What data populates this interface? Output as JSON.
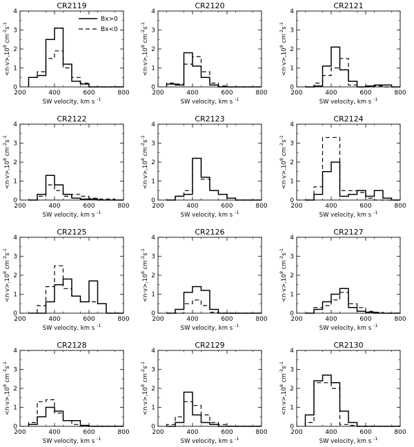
{
  "chart_data": {
    "type": "histogram-grid",
    "xlabel": "SW velocity, km s",
    "xlabel_sup": "-1",
    "ylabel": "<n·v>,10",
    "ylabel_exp": "8",
    "ylabel_unit": "cm",
    "ylabel_unit_exp": "-2",
    "ylabel_tail": "s",
    "ylabel_tail_exp": "-1",
    "xlim": [
      200,
      800
    ],
    "ylim": [
      0,
      4
    ],
    "xticks": [
      200,
      400,
      600,
      800
    ],
    "yticks": [
      0,
      1,
      2,
      3,
      4
    ],
    "bin_edges": [
      250,
      300,
      350,
      400,
      450,
      500,
      550,
      600,
      650,
      700,
      750,
      800
    ],
    "legend": [
      {
        "label": "Bx>0",
        "style": "solid"
      },
      {
        "label": "Bx<0",
        "style": "dashed"
      }
    ],
    "panels": [
      {
        "title": "CR2119",
        "solid": [
          0.5,
          0.6,
          2.5,
          3.1,
          1.2,
          0.3,
          0.15,
          0,
          0,
          0,
          0
        ],
        "dashed": [
          0.5,
          0.8,
          1.5,
          1.9,
          1.0,
          0.5,
          0.2,
          0,
          0,
          0,
          0
        ]
      },
      {
        "title": "CR2120",
        "solid": [
          0.15,
          0.1,
          1.8,
          1.1,
          0.5,
          0.1,
          0,
          0,
          0,
          0,
          0
        ],
        "dashed": [
          0.2,
          0.15,
          1.2,
          1.6,
          0.8,
          0.2,
          0.05,
          0,
          0,
          0,
          0
        ]
      },
      {
        "title": "CR2121",
        "solid": [
          0,
          0.05,
          1.1,
          2.1,
          0.9,
          0.3,
          0,
          0.05,
          0.1,
          0.1,
          0
        ],
        "dashed": [
          0,
          0.2,
          0.6,
          1.0,
          1.5,
          0.1,
          0,
          0,
          0.05,
          0,
          0
        ]
      },
      {
        "title": "CR2122",
        "solid": [
          0,
          0.3,
          1.3,
          0.8,
          0.3,
          0.1,
          0.05,
          0.05,
          0,
          0,
          0
        ],
        "dashed": [
          0,
          0.2,
          0.8,
          0.5,
          0.2,
          0.3,
          0.2,
          0.1,
          0.05,
          0.05,
          0
        ]
      },
      {
        "title": "CR2123",
        "solid": [
          0,
          0.2,
          0.3,
          2.2,
          1.2,
          0.5,
          0.3,
          0.1,
          0,
          0,
          0
        ],
        "dashed": [
          0,
          0.2,
          0.5,
          2.2,
          1.1,
          0.5,
          0.3,
          0.1,
          0,
          0,
          0
        ]
      },
      {
        "title": "CR2124",
        "solid": [
          0,
          0.3,
          1.5,
          2.0,
          0.2,
          0.3,
          0.5,
          0.2,
          0.5,
          0.1,
          0
        ],
        "dashed": [
          0,
          0.7,
          3.3,
          3.3,
          0.5,
          0.5,
          0.4,
          0.1,
          0,
          0,
          0
        ]
      },
      {
        "title": "CR2125",
        "solid": [
          0,
          0,
          0.6,
          1.5,
          1.8,
          0.9,
          0.6,
          1.7,
          0.5,
          0,
          0
        ],
        "dashed": [
          0,
          0.4,
          1.4,
          2.5,
          1.3,
          0.9,
          0.6,
          0.6,
          0.5,
          0,
          0
        ],
        "dashed_start": 300
      },
      {
        "title": "CR2126",
        "solid": [
          0,
          0.2,
          1.1,
          1.4,
          1.2,
          0.2,
          0,
          0,
          0,
          0,
          0
        ],
        "dashed": [
          0,
          0,
          0.5,
          0.7,
          0.4,
          0.05,
          0,
          0,
          0,
          0,
          0
        ]
      },
      {
        "title": "CR2127",
        "solid": [
          0,
          0.2,
          0.6,
          1.0,
          1.3,
          0.3,
          0.1,
          0.05,
          0,
          0,
          0
        ],
        "dashed": [
          0,
          0.3,
          0.4,
          0.7,
          1.1,
          0.5,
          0.3,
          0.1,
          0.05,
          0,
          0
        ]
      },
      {
        "title": "CR2128",
        "solid": [
          0.1,
          0.5,
          1.0,
          0.8,
          0.3,
          0.3,
          0.05,
          0,
          0,
          0,
          0
        ],
        "dashed": [
          0.2,
          1.3,
          1.4,
          0.7,
          0.3,
          0.1,
          0,
          0,
          0,
          0,
          0
        ]
      },
      {
        "title": "CR2129",
        "solid": [
          0,
          0.2,
          1.8,
          0.6,
          0.2,
          0.1,
          0,
          0,
          0,
          0,
          0
        ],
        "dashed": [
          0.1,
          0.5,
          1.3,
          1.1,
          0.6,
          0.2,
          0.1,
          0,
          0,
          0,
          0
        ]
      },
      {
        "title": "CR2130",
        "solid": [
          0.6,
          2.4,
          2.7,
          2.3,
          0.8,
          0.2,
          0,
          0,
          0,
          0,
          0
        ],
        "dashed": [
          0.2,
          2.3,
          2.3,
          2.0,
          0.1,
          0.05,
          0,
          0,
          0,
          0,
          0
        ]
      }
    ]
  }
}
